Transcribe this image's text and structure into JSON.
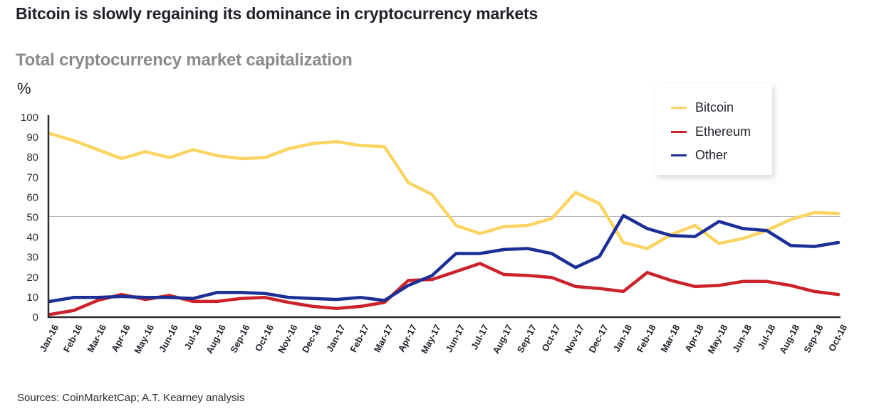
{
  "header": {
    "title": "Bitcoin is slowly regaining its dominance in cryptocurrency markets",
    "subtitle": "Total cryptocurrency market capitalization",
    "unit": "%"
  },
  "footer": {
    "source": "Sources: CoinMarketCap; A.T. Kearney analysis"
  },
  "chart_data": {
    "type": "line",
    "title": "Total cryptocurrency market capitalization",
    "xlabel": "",
    "ylabel": "%",
    "ylim": [
      0,
      100
    ],
    "yticks": [
      0,
      10,
      20,
      30,
      40,
      50,
      60,
      70,
      80,
      90,
      100
    ],
    "reference_line": 50,
    "grid": false,
    "legend_position": "top-right",
    "categories": [
      "Jan-16",
      "Feb-16",
      "Mar-16",
      "Apr-16",
      "May-16",
      "Jun-16",
      "Jul-16",
      "Aug-16",
      "Sep-16",
      "Oct-16",
      "Nov-16",
      "Dec-16",
      "Jan-17",
      "Feb-17",
      "Mar-17",
      "Apr-17",
      "May-17",
      "Jun-17",
      "Jul-17",
      "Aug-17",
      "Sep-17",
      "Oct-17",
      "Nov-17",
      "Dec-17",
      "Jan-18",
      "Feb-18",
      "Mar-18",
      "Apr-18",
      "May-18",
      "Jun-18",
      "Jul-18",
      "Aug-18",
      "Sep-18",
      "Oct-18"
    ],
    "series": [
      {
        "name": "Bitcoin",
        "color": "#fcd462",
        "values": [
          91.5,
          88,
          83.5,
          79,
          82.5,
          79.5,
          83.5,
          80.5,
          79,
          79.5,
          84,
          86.5,
          87.5,
          85.5,
          85,
          67,
          61,
          45.5,
          41.5,
          45,
          45.5,
          49,
          62,
          56.5,
          37,
          34,
          41,
          45.5,
          36.5,
          39,
          43,
          48.5,
          52,
          51.5
        ]
      },
      {
        "name": "Ethereum",
        "color": "#cc2229",
        "values": [
          1,
          3,
          8,
          11,
          8.5,
          10.5,
          7.5,
          7.5,
          9,
          9.5,
          7,
          5,
          4,
          5,
          7,
          18,
          18.5,
          22.5,
          26.5,
          21,
          20.5,
          19.5,
          15,
          14,
          12.5,
          22,
          18,
          15,
          15.5,
          17.5,
          17.5,
          15.5,
          12.5,
          11
        ]
      },
      {
        "name": "Other",
        "color": "#1b2f96",
        "values": [
          7.5,
          9.5,
          9.5,
          10,
          9.5,
          9.5,
          9,
          12,
          12,
          11.5,
          9.5,
          9,
          8.5,
          9.5,
          8,
          15.5,
          20.5,
          31.5,
          31.5,
          33.5,
          34,
          31.5,
          24.5,
          30,
          50.5,
          44,
          40.5,
          40,
          47.5,
          44,
          43,
          35.5,
          35,
          37
        ]
      }
    ]
  }
}
